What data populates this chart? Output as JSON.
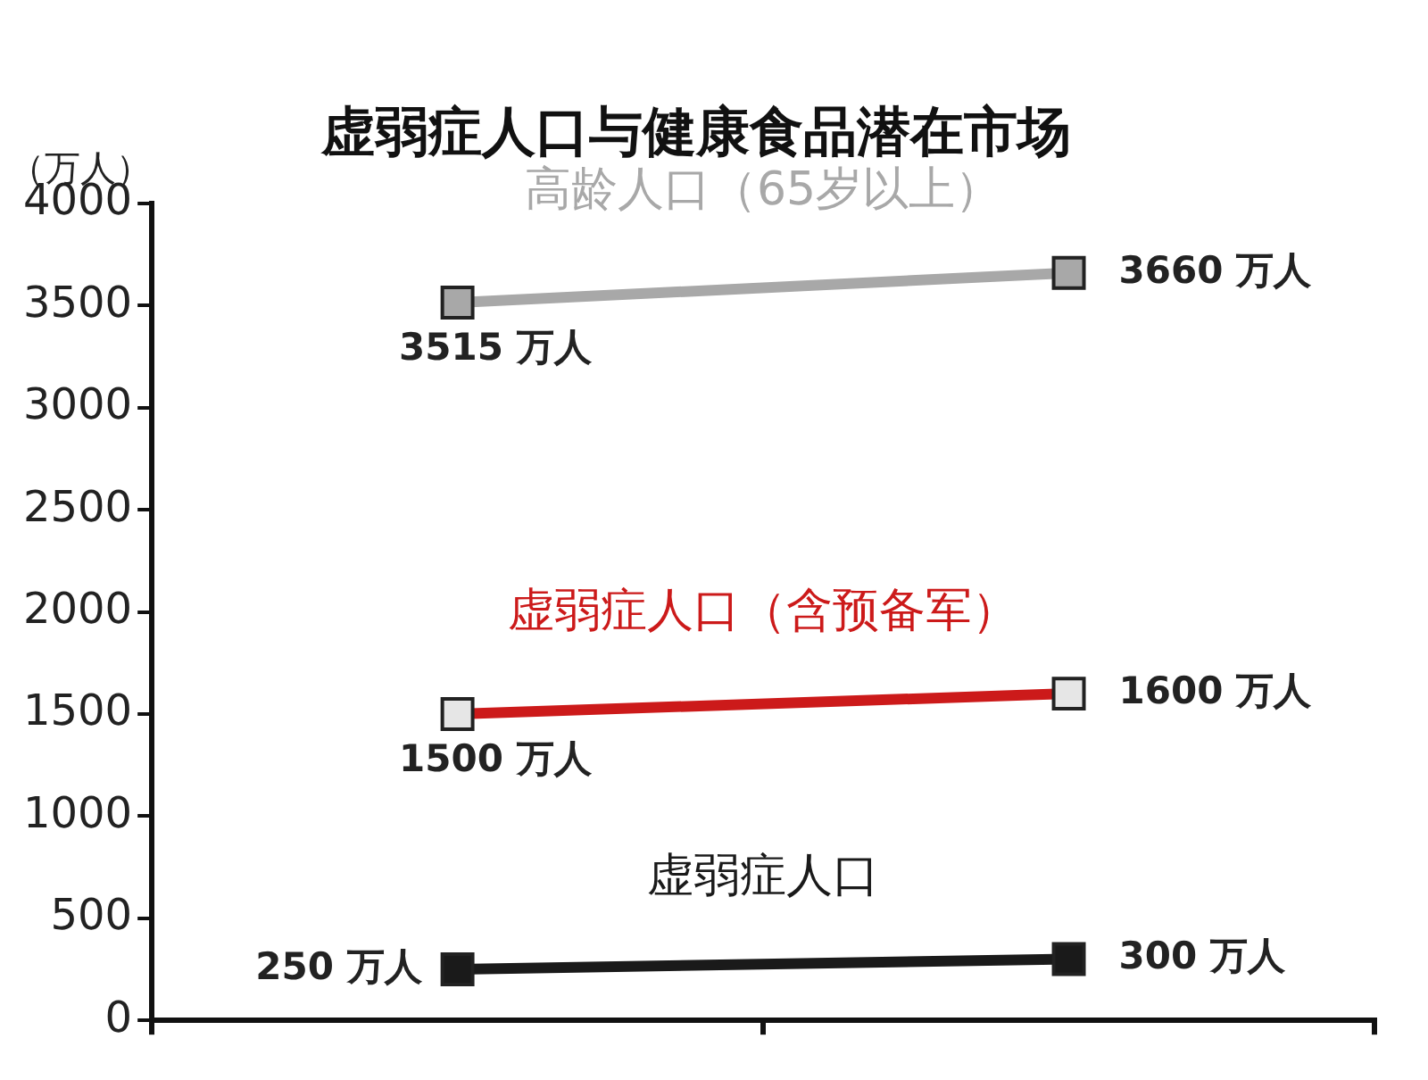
{
  "chart_data": {
    "type": "line",
    "title": "虚弱症人口与健康食品潜在市场",
    "ylabel": "（万人）",
    "categories": [
      null,
      null
    ],
    "ylim": [
      0,
      4000
    ],
    "yticks": [
      0,
      500,
      1000,
      1500,
      2000,
      2500,
      3000,
      3500,
      4000
    ],
    "grid": false,
    "legend": false,
    "marker": "square",
    "line_style": "solid",
    "series": [
      {
        "name": "高龄人口（65岁以上）",
        "color": "#a8a8a8",
        "values": [
          3515,
          3660
        ],
        "value_labels": [
          "3515 万人",
          "3660 万人"
        ]
      },
      {
        "name": "虚弱症人口（含预备军）",
        "color": "#cc1a1a",
        "values": [
          1500,
          1600
        ],
        "value_labels": [
          "1500 万人",
          "1600 万人"
        ]
      },
      {
        "name": "虚弱症人口",
        "color": "#1a1a1a",
        "values": [
          250,
          300
        ],
        "value_labels": [
          "250 万人",
          "300 万人"
        ]
      }
    ]
  }
}
